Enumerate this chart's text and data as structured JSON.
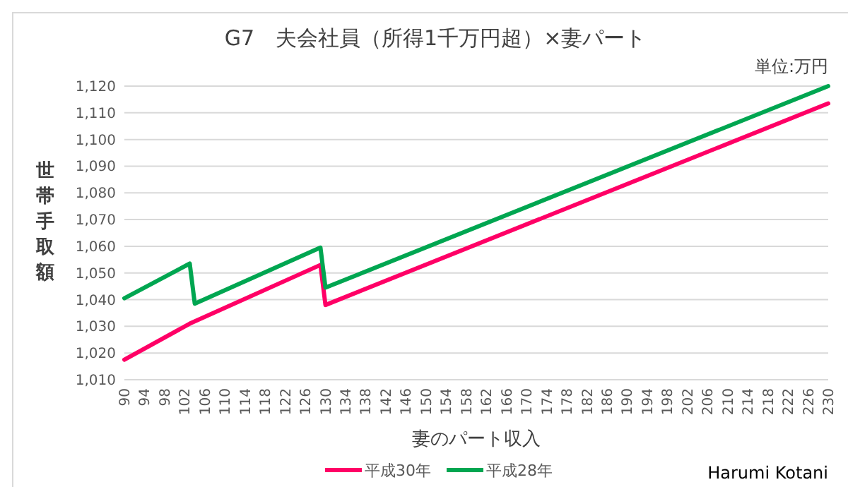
{
  "chart_data": {
    "type": "line",
    "title": "G7　夫会社員（所得1千万円超）×妻パート",
    "xlabel": "妻のパート収入",
    "ylabel": "世帯手取額",
    "annotations": [
      "単位:万円",
      "Harumi Kotani"
    ],
    "xlim": [
      90,
      230
    ],
    "xticks": [
      90,
      94,
      98,
      102,
      106,
      110,
      114,
      118,
      122,
      126,
      130,
      134,
      138,
      142,
      146,
      150,
      154,
      158,
      162,
      166,
      170,
      174,
      178,
      182,
      186,
      190,
      194,
      198,
      202,
      206,
      210,
      214,
      218,
      222,
      226,
      230
    ],
    "ylim": [
      1010,
      1120
    ],
    "yticks": [
      {
        "value": 1010,
        "label": "1,010"
      },
      {
        "value": 1020,
        "label": "1,020"
      },
      {
        "value": 1030,
        "label": "1,030"
      },
      {
        "value": 1040,
        "label": "1,040"
      },
      {
        "value": 1050,
        "label": "1,050"
      },
      {
        "value": 1060,
        "label": "1,060"
      },
      {
        "value": 1070,
        "label": "1,070"
      },
      {
        "value": 1080,
        "label": "1,080"
      },
      {
        "value": 1090,
        "label": "1,090"
      },
      {
        "value": 1100,
        "label": "1,100"
      },
      {
        "value": 1110,
        "label": "1,110"
      },
      {
        "value": 1120,
        "label": "1,120"
      }
    ],
    "grid": "y",
    "legend": "bottom",
    "marker": "none",
    "line_style": "solid",
    "series": [
      {
        "name": "平成30年",
        "color": "#ff0066",
        "x": [
          90,
          103,
          129,
          130,
          230
        ],
        "values": [
          1017.5,
          1031,
          1053,
          1038,
          1113.5
        ]
      },
      {
        "name": "平成28年",
        "color": "#00a651",
        "x": [
          90,
          103,
          104,
          129,
          130,
          230
        ],
        "values": [
          1040.5,
          1053.5,
          1038.5,
          1059.5,
          1044.5,
          1120
        ]
      }
    ]
  }
}
